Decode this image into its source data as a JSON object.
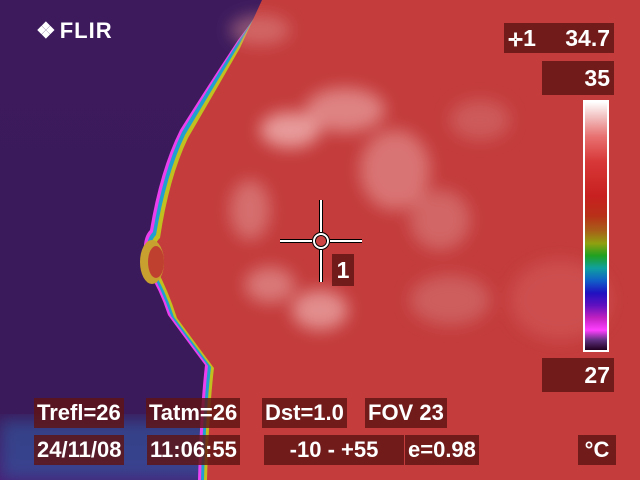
{
  "brand": {
    "logo_text": "FLIR",
    "logo_icon": "flir-diamond-icon"
  },
  "spot_readout": {
    "icon": "spot-crosshair-icon",
    "label": "1",
    "value": "34.7"
  },
  "scale": {
    "max": "35",
    "min": "27",
    "unit": "°C"
  },
  "spot_marker": {
    "label": "1"
  },
  "info": {
    "trefl": "Trefl=26",
    "tatm": "Tatm=26",
    "dst": "Dst=1.0",
    "fov": "FOV 23",
    "date": "24/11/08",
    "time": "11:06:55",
    "range": "-10 -  +55",
    "emissivity": "e=0.98"
  },
  "colors": {
    "background_cold": "#3a1a5a",
    "body_warm": "#c43c3c",
    "highlight": "#f0b0b0",
    "overlay_panel": "#5f1414"
  }
}
